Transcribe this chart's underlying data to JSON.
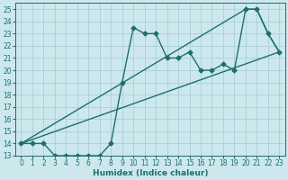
{
  "xlabel": "Humidex (Indice chaleur)",
  "bg_color": "#cce8ed",
  "line_color": "#1e6e6e",
  "grid_color": "#aad0d8",
  "xlim": [
    -0.5,
    23.5
  ],
  "ylim": [
    13,
    25.5
  ],
  "xticks": [
    0,
    1,
    2,
    3,
    4,
    5,
    6,
    7,
    8,
    9,
    10,
    11,
    12,
    13,
    14,
    15,
    16,
    17,
    18,
    19,
    20,
    21,
    22,
    23
  ],
  "yticks": [
    13,
    14,
    15,
    16,
    17,
    18,
    19,
    20,
    21,
    22,
    23,
    24,
    25
  ],
  "series1_x": [
    0,
    1,
    2,
    3,
    4,
    5,
    6,
    7,
    8,
    9,
    10,
    11,
    12,
    13,
    14,
    15,
    16,
    17,
    18,
    19,
    20,
    21,
    22,
    23
  ],
  "series1_y": [
    14,
    14,
    14,
    13,
    13,
    13,
    13,
    13,
    14,
    19,
    23.5,
    23,
    23,
    21,
    21,
    21.5,
    20,
    20,
    20.5,
    20,
    25,
    25,
    23,
    21.5
  ],
  "series2_x": [
    0,
    20,
    21,
    22,
    23
  ],
  "series2_y": [
    14,
    25,
    25,
    23,
    21.5
  ],
  "series3_x": [
    0,
    23
  ],
  "series3_y": [
    14,
    21.5
  ],
  "markersize": 2.5,
  "linewidth": 1.0,
  "xlabel_fontsize": 6.5,
  "tick_fontsize": 5.5
}
